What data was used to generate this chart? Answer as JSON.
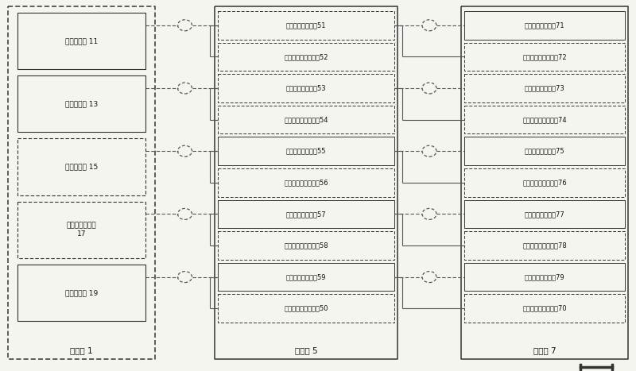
{
  "bg_color": "#f5f5f0",
  "main_box_label": "主机房 1",
  "relay_box_label": "转接箱 5",
  "control_box_label": "控制柜 7",
  "sensors": [
    {
      "label": "温度传感器 11",
      "style": "solid"
    },
    {
      "label": "压力传感器 13",
      "style": "solid"
    },
    {
      "label": "转速传感器 15",
      "style": "dashed"
    },
    {
      "label": "调速系统传感器\n17",
      "style": "dashed"
    },
    {
      "label": "反馈传感器 19",
      "style": "solid"
    }
  ],
  "relay_terminals": [
    {
      "label": "第一信号转接端子51",
      "style": "dashed"
    },
    {
      "label": "第一屏蔽层转接端子52",
      "style": "dashed"
    },
    {
      "label": "第二信号转接端子53",
      "style": "dashed"
    },
    {
      "label": "第二屏蔽层转接端子54",
      "style": "dashed"
    },
    {
      "label": "第三信号转接端子55",
      "style": "solid"
    },
    {
      "label": "第三屏蔽层转接端子56",
      "style": "dashed"
    },
    {
      "label": "第四信号转接端子57",
      "style": "solid"
    },
    {
      "label": "第四屏蔽层转接端子58",
      "style": "dashed"
    },
    {
      "label": "第五信号转接端子59",
      "style": "solid"
    },
    {
      "label": "第五屏蔽层转接端子50",
      "style": "dashed"
    }
  ],
  "control_terminals": [
    {
      "label": "第一信号接收端子71",
      "style": "solid"
    },
    {
      "label": "第一屏蔽层接地端子72",
      "style": "dashed"
    },
    {
      "label": "第二信号接收端子73",
      "style": "dashed"
    },
    {
      "label": "第二屏蔽层接地端子74",
      "style": "dashed"
    },
    {
      "label": "第三信号接收端子75",
      "style": "solid"
    },
    {
      "label": "第三屏蔽层接地端子76",
      "style": "dashed"
    },
    {
      "label": "第四信号接收端子77",
      "style": "solid"
    },
    {
      "label": "第四屏蔽层接地端子78",
      "style": "dashed"
    },
    {
      "label": "第五信号接收端子79",
      "style": "solid"
    },
    {
      "label": "第五屏蔽层接地端子70",
      "style": "dashed"
    }
  ],
  "sensor_signal_rows": [
    0,
    2,
    4,
    6,
    8
  ],
  "sensor_shield_rows": [
    1,
    3,
    5,
    7,
    9
  ],
  "line_color": "#555555",
  "box_color": "#333333",
  "text_color": "#111111"
}
